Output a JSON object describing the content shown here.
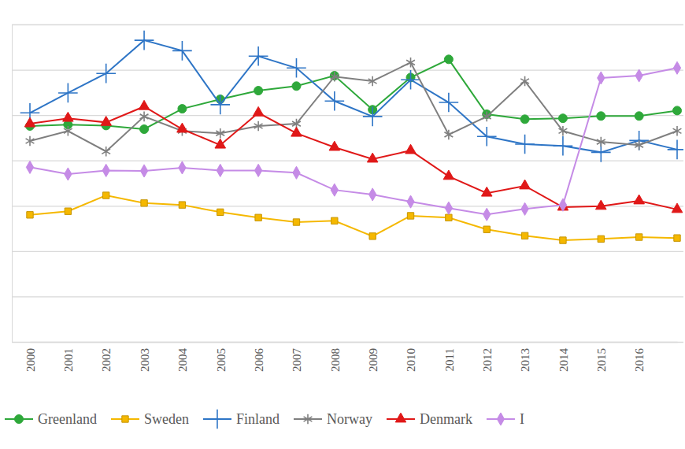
{
  "chart_data": {
    "type": "line",
    "categories": [
      "2000",
      "2001",
      "2002",
      "2003",
      "2004",
      "2005",
      "2006",
      "2007",
      "2008",
      "2009",
      "2010",
      "2011",
      "2012",
      "2013",
      "2014",
      "2015",
      "2016",
      null
    ],
    "series": [
      {
        "name": "Greenland",
        "color": "#2ea83a",
        "marker": "circle",
        "values": [
          4.76,
          4.79,
          4.77,
          4.69,
          5.14,
          5.35,
          5.54,
          5.64,
          5.87,
          5.12,
          5.83,
          6.23,
          5.02,
          4.91,
          4.93,
          4.98,
          4.98,
          5.1
        ]
      },
      {
        "name": "Sweden",
        "color": "#f5b800",
        "marker": "square",
        "values": [
          2.8,
          2.88,
          3.23,
          3.06,
          3.02,
          2.86,
          2.74,
          2.64,
          2.67,
          2.33,
          2.78,
          2.74,
          2.48,
          2.34,
          2.24,
          2.27,
          2.31,
          2.29
        ]
      },
      {
        "name": "Finland",
        "color": "#2e75c6",
        "marker": "plus",
        "values": [
          5.05,
          5.49,
          5.92,
          6.65,
          6.42,
          5.23,
          6.3,
          6.04,
          5.31,
          4.97,
          5.78,
          5.28,
          4.53,
          4.36,
          4.32,
          4.18,
          4.44,
          4.24
        ]
      },
      {
        "name": "Norway",
        "color": "#7f7f7f",
        "marker": "asterisk",
        "values": [
          4.43,
          4.65,
          4.2,
          4.97,
          4.65,
          4.6,
          4.76,
          4.81,
          5.85,
          5.75,
          6.16,
          4.57,
          4.97,
          5.75,
          4.65,
          4.41,
          4.34,
          4.65
        ]
      },
      {
        "name": "Denmark",
        "color": "#e01818",
        "marker": "triangle",
        "values": [
          4.81,
          4.93,
          4.84,
          5.19,
          4.69,
          4.34,
          5.05,
          4.6,
          4.29,
          4.03,
          4.22,
          3.65,
          3.28,
          3.44,
          2.97,
          2.99,
          3.11,
          2.92
        ]
      },
      {
        "name": "I",
        "color": "#c58be6",
        "marker": "diamond",
        "values": [
          3.85,
          3.7,
          3.78,
          3.77,
          3.84,
          3.78,
          3.78,
          3.73,
          3.35,
          3.25,
          3.09,
          2.95,
          2.81,
          2.93,
          3.02,
          5.82,
          5.87,
          6.04
        ]
      }
    ],
    "ylim": [
      0,
      7
    ],
    "yticks": [
      0,
      1,
      2,
      3,
      4,
      5,
      6,
      7
    ],
    "grid": true,
    "legend": "bottom",
    "tick_labels": "x"
  }
}
